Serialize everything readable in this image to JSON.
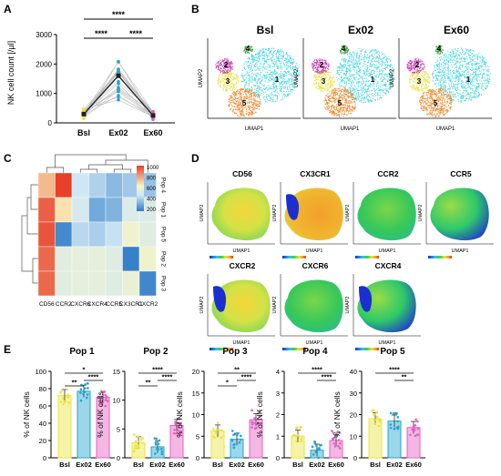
{
  "panels": {
    "A": "A",
    "B": "B",
    "C": "C",
    "D": "D",
    "E": "E"
  },
  "colors": {
    "bsl": "#E9E43B",
    "ex02": "#22A4CF",
    "ex60": "#E65FC4",
    "cyan": "#4FD6E0",
    "orange": "#F08A2E",
    "magenta": "#C73FB3",
    "yellowClu": "#E8E34A",
    "green": "#45A54A",
    "heatRed": "#E8402A",
    "heatBlue": "#2E7BC8",
    "heatPale": "#FBF6C0"
  },
  "chart_data": [
    {
      "type": "scatter",
      "panel": "A",
      "ylabel": "NK cell count [/µl]",
      "categories": [
        "Bsl",
        "Ex02",
        "Ex60"
      ],
      "yticks": [
        "0",
        "1000",
        "2000",
        "3000"
      ],
      "ylim": [
        0,
        3000
      ],
      "means": [
        300,
        1600,
        250
      ],
      "significance": [
        "****",
        "****",
        "****"
      ]
    },
    {
      "type": "scatter",
      "panel": "B",
      "titles": [
        "Bsl",
        "Ex02",
        "Ex60"
      ],
      "xlabel": "UMAP1",
      "ylabel": "UMAP2",
      "cluster_labels": [
        "1",
        "2",
        "3",
        "4",
        "5"
      ]
    },
    {
      "type": "heatmap",
      "panel": "C",
      "columns": [
        "CD56",
        "CCR2",
        "CXCR6",
        "CXCR4",
        "CCR5",
        "CX3CR1",
        "CXCR2"
      ],
      "rows": [
        "Pop 4",
        "Pop 1",
        "Pop 5",
        "Pop 2",
        "Pop 3"
      ],
      "legend_ticks": [
        "1000",
        "800",
        "600",
        "400",
        "200"
      ],
      "values": [
        [
          700,
          1000,
          350,
          280,
          200,
          250,
          230
        ],
        [
          920,
          600,
          380,
          150,
          180,
          400,
          400
        ],
        [
          950,
          50,
          300,
          270,
          330,
          500,
          420
        ],
        [
          900,
          430,
          450,
          450,
          420,
          20,
          500
        ],
        [
          900,
          430,
          450,
          450,
          420,
          470,
          40
        ]
      ]
    },
    {
      "type": "heatmap",
      "panel": "D",
      "titles": [
        "CD56",
        "CX3CR1",
        "CCR2",
        "CCR5",
        "CXCR2",
        "CXCR6",
        "CXCR4"
      ],
      "xlabel": "UMAP1",
      "ylabel": "UMAP2"
    },
    {
      "type": "bar",
      "panel": "E",
      "categories": [
        "Bsl",
        "Ex02",
        "Ex60"
      ],
      "ylabel": "% of NK cells",
      "series": [
        {
          "name": "Pop 1",
          "values": [
            72,
            77,
            70
          ],
          "yticks": [
            "0",
            "20",
            "40",
            "60",
            "80",
            "100"
          ],
          "ylim": [
            0,
            100
          ],
          "sig": [
            "*",
            "**",
            "****"
          ]
        },
        {
          "name": "Pop 2",
          "values": [
            2.6,
            1.9,
            5.6
          ],
          "yticks": [
            "0",
            "5",
            "10",
            "15"
          ],
          "ylim": [
            0,
            15
          ],
          "sig": [
            "****",
            "**",
            "****"
          ]
        },
        {
          "name": "Pop 3",
          "values": [
            6.2,
            4.3,
            8.8
          ],
          "yticks": [
            "0",
            "5",
            "10",
            "15",
            "20"
          ],
          "ylim": [
            0,
            20
          ],
          "sig": [
            "**",
            "*",
            "****"
          ]
        },
        {
          "name": "Pop 4",
          "values": [
            1.0,
            0.35,
            0.8
          ],
          "yticks": [
            "0",
            "1",
            "2",
            "3",
            "4"
          ],
          "ylim": [
            0,
            4
          ],
          "sig": [
            "****",
            "****"
          ]
        },
        {
          "name": "Pop 5",
          "values": [
            18,
            17,
            14
          ],
          "yticks": [
            "0",
            "10",
            "20",
            "30",
            "40"
          ],
          "ylim": [
            0,
            40
          ],
          "sig": [
            "****",
            "**"
          ]
        }
      ]
    }
  ]
}
